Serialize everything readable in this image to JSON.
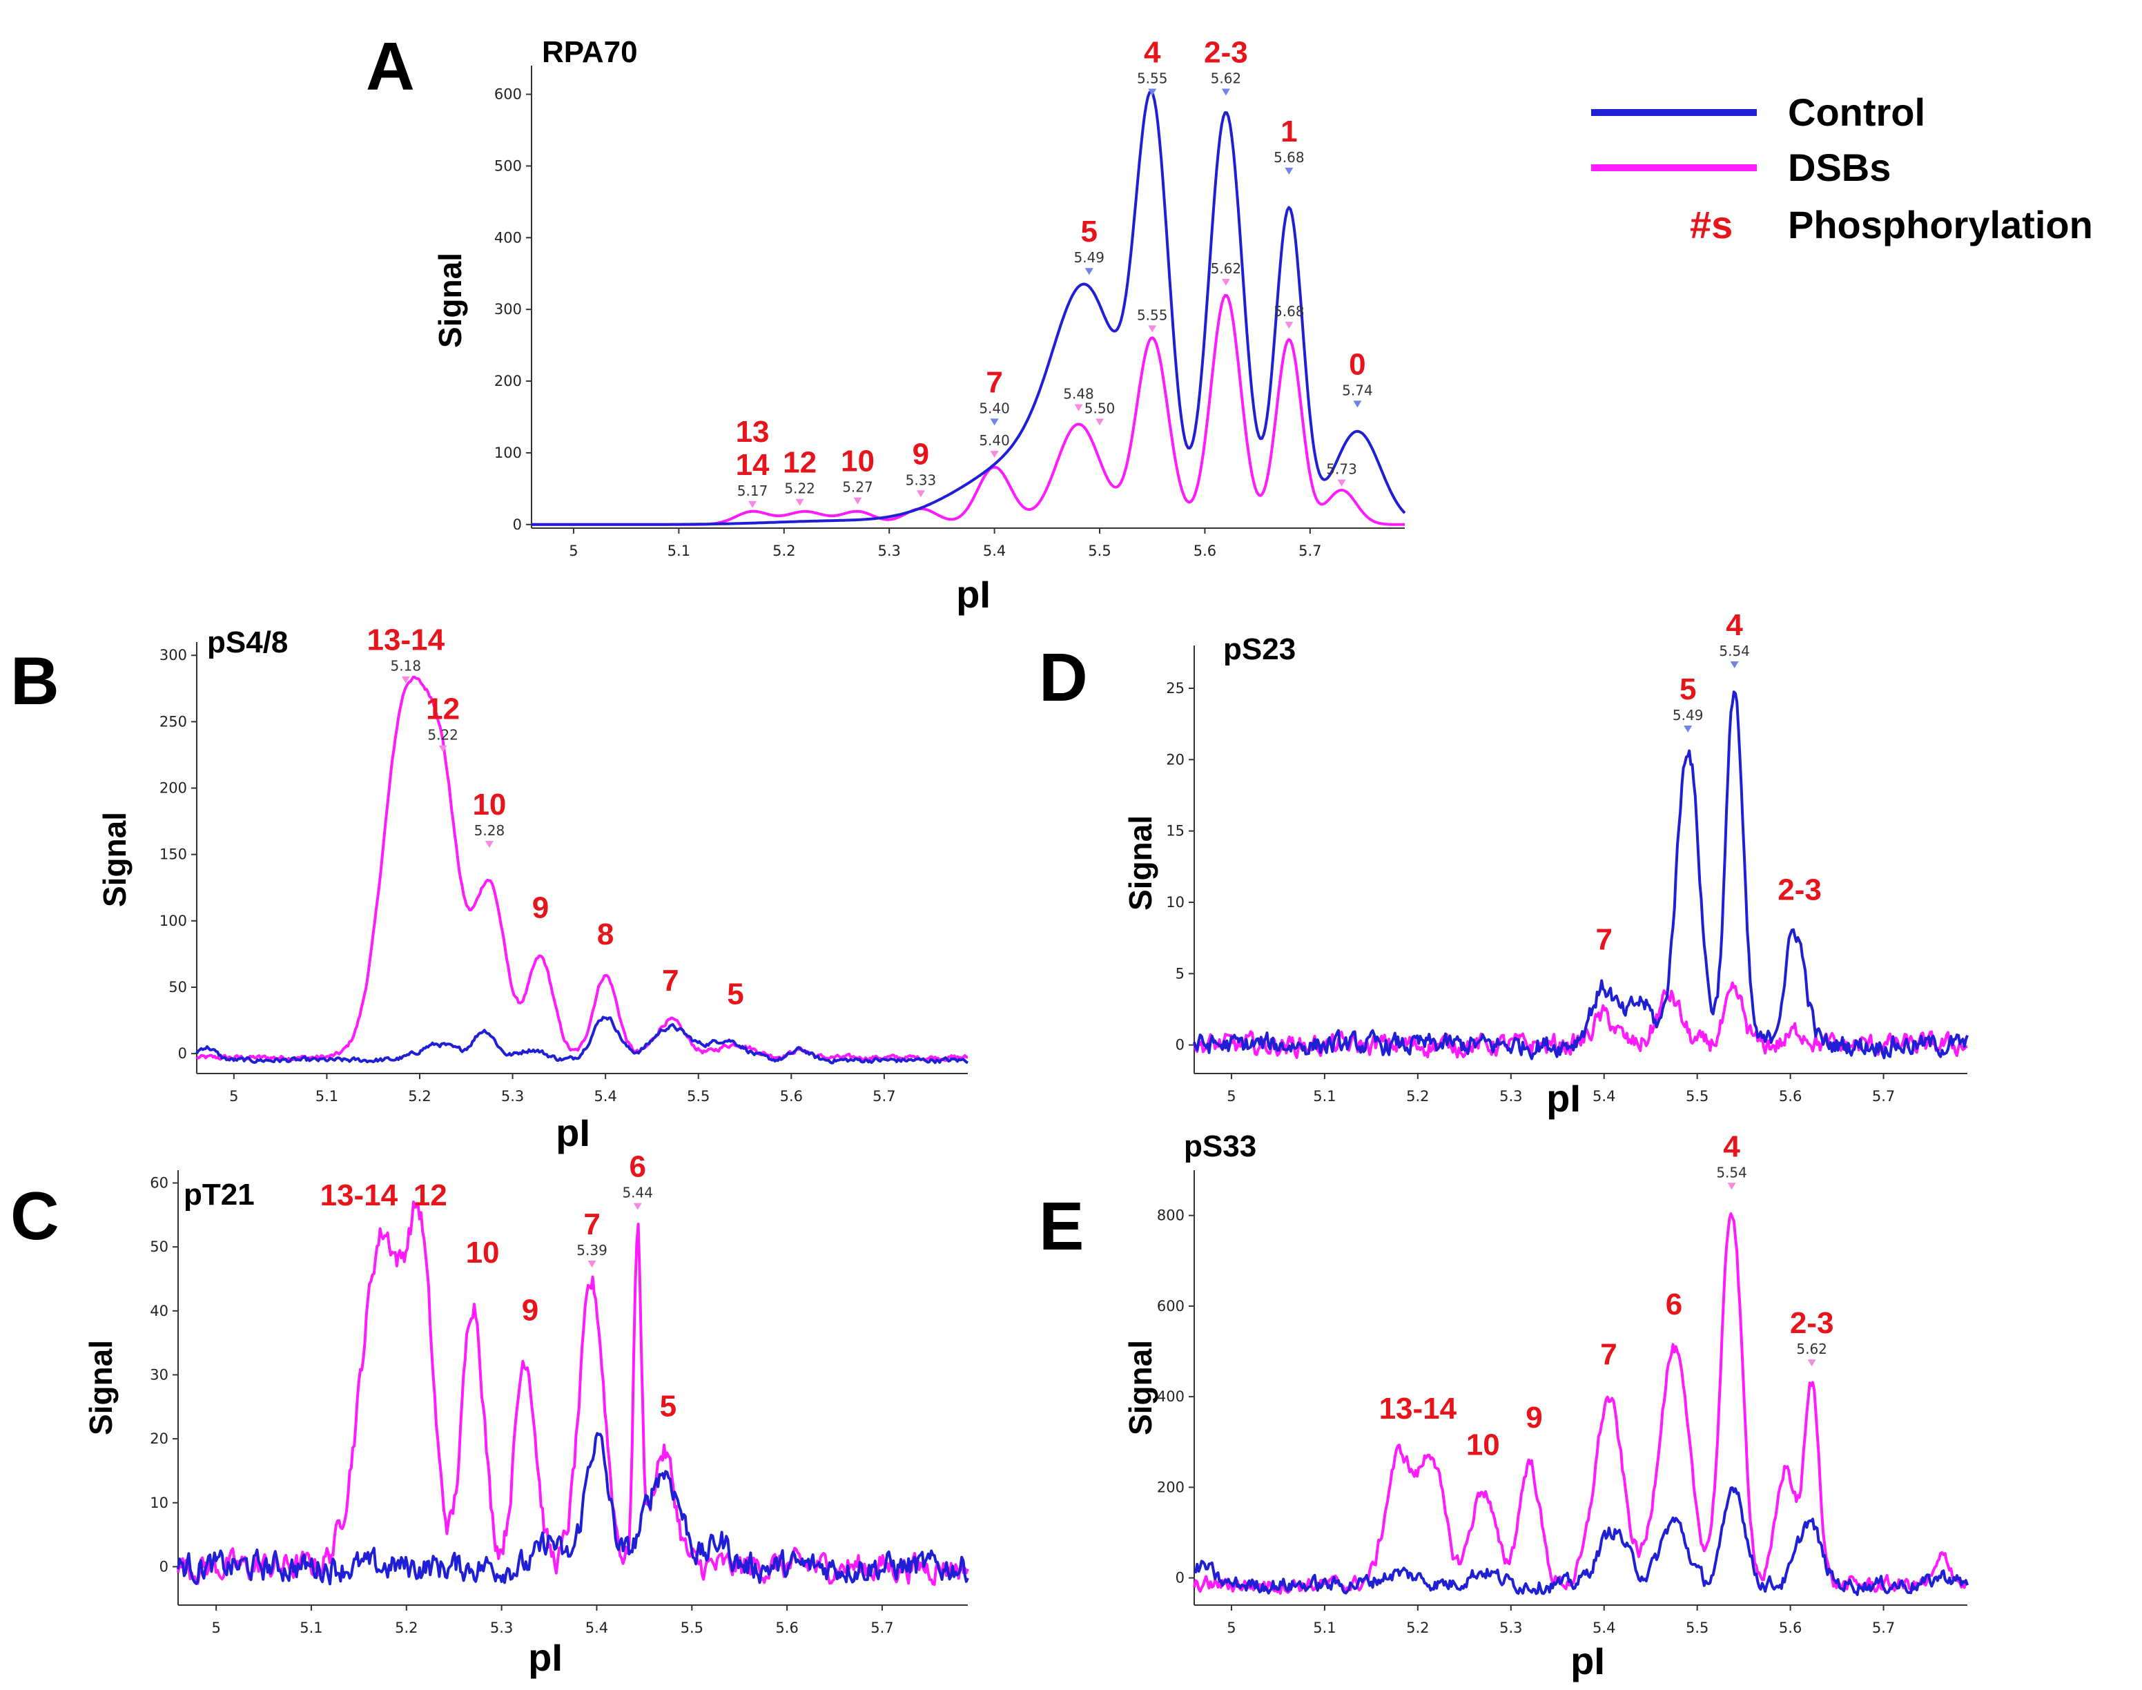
{
  "colors": {
    "control": "#1f1fd6",
    "dsbs": "#ff1aff",
    "annotation": "#e8141b",
    "marker_control": "#6f84e8",
    "marker_dsbs": "#f58ae0"
  },
  "legend": {
    "control_label": "Control",
    "dsbs_label": "DSBs",
    "phospho_symbol": "#s",
    "phospho_label": "Phosphorylation"
  },
  "chart_data": [
    {
      "id": "A",
      "type": "line",
      "title": "RPA70",
      "xlabel": "pI",
      "ylabel": "Signal",
      "xlim": [
        4.96,
        5.79
      ],
      "ylim": [
        -5,
        640
      ],
      "xticks": [
        5,
        5.1,
        5.2,
        5.3,
        5.4,
        5.5,
        5.6,
        5.7
      ],
      "yticks": [
        0,
        100,
        200,
        300,
        400,
        500,
        600
      ],
      "noise": 0,
      "series": [
        {
          "name": "Control",
          "baseline": 0,
          "peaks": [
            [
              5.25,
              5,
              0.06
            ],
            [
              5.4,
              55,
              0.05
            ],
            [
              5.46,
              80,
              0.04
            ],
            [
              5.49,
              260,
              0.03
            ],
            [
              5.55,
              560,
              0.016
            ],
            [
              5.62,
              575,
              0.016
            ],
            [
              5.68,
              440,
              0.013
            ],
            [
              5.745,
              130,
              0.022
            ]
          ]
        },
        {
          "name": "DSBs",
          "baseline": 0,
          "peaks": [
            [
              5.17,
              18,
              0.016
            ],
            [
              5.22,
              18,
              0.018
            ],
            [
              5.27,
              18,
              0.016
            ],
            [
              5.33,
              22,
              0.016
            ],
            [
              5.4,
              80,
              0.016
            ],
            [
              5.48,
              140,
              0.021
            ],
            [
              5.55,
              260,
              0.015
            ],
            [
              5.62,
              320,
              0.014
            ],
            [
              5.68,
              258,
              0.012
            ],
            [
              5.73,
              48,
              0.014
            ]
          ]
        }
      ],
      "phospho_labels": [
        {
          "x": 5.55,
          "y": 600,
          "label": "4"
        },
        {
          "x": 5.62,
          "y": 600,
          "label": "2-3"
        },
        {
          "x": 5.68,
          "y": 490,
          "label": "1"
        },
        {
          "x": 5.49,
          "y": 350,
          "label": "5"
        },
        {
          "x": 5.745,
          "y": 165,
          "label": "0"
        },
        {
          "x": 5.4,
          "y": 140,
          "label": "7"
        },
        {
          "x": 5.33,
          "y": 40,
          "label": "9"
        },
        {
          "x": 5.27,
          "y": 30,
          "label": "10"
        },
        {
          "x": 5.215,
          "y": 28,
          "label": "12"
        },
        {
          "x": 5.17,
          "y": 25,
          "label": "14"
        },
        {
          "x": 5.17,
          "y": 25,
          "label": "13"
        }
      ],
      "peak_markers": [
        {
          "x": 5.55,
          "y": 600,
          "value": "5.55",
          "series": "Control"
        },
        {
          "x": 5.62,
          "y": 600,
          "value": "5.62",
          "series": "Control"
        },
        {
          "x": 5.68,
          "y": 490,
          "value": "5.68",
          "series": "Control"
        },
        {
          "x": 5.49,
          "y": 350,
          "value": "5.49",
          "series": "Control"
        },
        {
          "x": 5.745,
          "y": 165,
          "value": "5.74",
          "series": "Control"
        },
        {
          "x": 5.4,
          "y": 140,
          "value": "5.40",
          "series": "Control"
        },
        {
          "x": 5.62,
          "y": 335,
          "value": "5.62",
          "series": "DSBs"
        },
        {
          "x": 5.55,
          "y": 270,
          "value": "5.55",
          "series": "DSBs"
        },
        {
          "x": 5.68,
          "y": 275,
          "value": "5.68",
          "series": "DSBs"
        },
        {
          "x": 5.48,
          "y": 160,
          "value": "5.48",
          "series": "DSBs"
        },
        {
          "x": 5.5,
          "y": 140,
          "value": "5.50",
          "series": "DSBs"
        },
        {
          "x": 5.4,
          "y": 95,
          "value": "5.40",
          "series": "DSBs"
        },
        {
          "x": 5.73,
          "y": 55,
          "value": "5.73",
          "series": "DSBs"
        },
        {
          "x": 5.33,
          "y": 40,
          "value": "5.33",
          "series": "DSBs"
        },
        {
          "x": 5.27,
          "y": 30,
          "value": "5.27",
          "series": "DSBs"
        },
        {
          "x": 5.215,
          "y": 28,
          "value": "5.22",
          "series": "DSBs"
        },
        {
          "x": 5.17,
          "y": 25,
          "value": "5.17",
          "series": "DSBs"
        }
      ]
    },
    {
      "id": "B",
      "type": "line",
      "title": "pS4/8",
      "xlabel": "pI",
      "ylabel": "Signal",
      "xlim": [
        4.96,
        5.79
      ],
      "ylim": [
        -15,
        310
      ],
      "xticks": [
        5,
        5.1,
        5.2,
        5.3,
        5.4,
        5.5,
        5.6,
        5.7
      ],
      "yticks": [
        0,
        50,
        100,
        150,
        200,
        250,
        300
      ],
      "noise": 1.5,
      "series": [
        {
          "name": "Control",
          "baseline": -5,
          "peaks": [
            [
              4.97,
              10,
              0.01
            ],
            [
              5.22,
              12,
              0.02
            ],
            [
              5.27,
              22,
              0.012
            ],
            [
              5.32,
              8,
              0.015
            ],
            [
              5.4,
              33,
              0.014
            ],
            [
              5.47,
              25,
              0.02
            ],
            [
              5.53,
              15,
              0.02
            ],
            [
              5.61,
              8,
              0.01
            ]
          ]
        },
        {
          "name": "DSBs",
          "baseline": -3,
          "peaks": [
            [
              5.185,
              265,
              0.024
            ],
            [
              5.225,
              170,
              0.018
            ],
            [
              5.275,
              130,
              0.017
            ],
            [
              5.33,
              75,
              0.014
            ],
            [
              5.4,
              62,
              0.013
            ],
            [
              5.47,
              28,
              0.016
            ],
            [
              5.54,
              10,
              0.02
            ],
            [
              5.61,
              6,
              0.01
            ]
          ]
        }
      ],
      "phospho_labels": [
        {
          "x": 5.185,
          "y": 280,
          "label": "13-14"
        },
        {
          "x": 5.225,
          "y": 228,
          "label": "12"
        },
        {
          "x": 5.275,
          "y": 156,
          "label": "10"
        },
        {
          "x": 5.33,
          "y": 95,
          "label": "9"
        },
        {
          "x": 5.4,
          "y": 75,
          "label": "8"
        },
        {
          "x": 5.47,
          "y": 40,
          "label": "7"
        },
        {
          "x": 5.54,
          "y": 30,
          "label": "5"
        }
      ],
      "peak_markers": [
        {
          "x": 5.185,
          "y": 280,
          "value": "5.18",
          "series": "DSBs"
        },
        {
          "x": 5.225,
          "y": 228,
          "value": "5.22",
          "series": "DSBs"
        },
        {
          "x": 5.275,
          "y": 156,
          "value": "5.28",
          "series": "DSBs"
        }
      ]
    },
    {
      "id": "C",
      "type": "line",
      "title": "pT21",
      "xlabel": "pI",
      "ylabel": "Signal",
      "xlim": [
        4.96,
        5.79
      ],
      "ylim": [
        -6,
        62
      ],
      "xticks": [
        5,
        5.1,
        5.2,
        5.3,
        5.4,
        5.5,
        5.6,
        5.7
      ],
      "yticks": [
        0,
        10,
        20,
        30,
        40,
        50,
        60
      ],
      "noise": 1.8,
      "series": [
        {
          "name": "Control",
          "baseline": 0,
          "peaks": [
            [
              5.35,
              4,
              0.01
            ],
            [
              5.4,
              20,
              0.012
            ],
            [
              5.47,
              15,
              0.018
            ],
            [
              5.53,
              4,
              0.01
            ]
          ]
        },
        {
          "name": "DSBs",
          "baseline": 0,
          "peaks": [
            [
              5.175,
              52,
              0.022
            ],
            [
              5.215,
              45,
              0.013
            ],
            [
              5.27,
              42,
              0.011
            ],
            [
              5.325,
              33,
              0.011
            ],
            [
              5.395,
              44,
              0.013
            ],
            [
              5.443,
              52,
              0.004
            ],
            [
              5.47,
              18,
              0.012
            ]
          ]
        }
      ],
      "phospho_labels": [
        {
          "x": 5.15,
          "y": 55,
          "label": "13-14"
        },
        {
          "x": 5.225,
          "y": 55,
          "label": "12"
        },
        {
          "x": 5.28,
          "y": 46,
          "label": "10"
        },
        {
          "x": 5.33,
          "y": 37,
          "label": "9"
        },
        {
          "x": 5.395,
          "y": 47,
          "label": "7"
        },
        {
          "x": 5.443,
          "y": 56,
          "label": "6"
        },
        {
          "x": 5.475,
          "y": 22,
          "label": "5"
        }
      ],
      "peak_markers": [
        {
          "x": 5.395,
          "y": 47,
          "value": "5.39",
          "series": "DSBs"
        },
        {
          "x": 5.443,
          "y": 56,
          "value": "5.44",
          "series": "DSBs"
        }
      ]
    },
    {
      "id": "D",
      "type": "line",
      "title": "pS23",
      "xlabel": "pI",
      "ylabel": "Signal",
      "xlim": [
        4.96,
        5.79
      ],
      "ylim": [
        -2,
        28
      ],
      "xticks": [
        5,
        5.1,
        5.2,
        5.3,
        5.4,
        5.5,
        5.6,
        5.7
      ],
      "yticks": [
        0,
        5,
        10,
        15,
        20,
        25
      ],
      "noise": 0.6,
      "series": [
        {
          "name": "Control",
          "baseline": 0,
          "peaks": [
            [
              5.4,
              4,
              0.014
            ],
            [
              5.44,
              3,
              0.012
            ],
            [
              5.49,
              21,
              0.012
            ],
            [
              5.54,
              25,
              0.009
            ],
            [
              5.605,
              8,
              0.011
            ]
          ]
        },
        {
          "name": "DSBs",
          "baseline": 0,
          "peaks": [
            [
              5.4,
              2,
              0.012
            ],
            [
              5.47,
              3.5,
              0.012
            ],
            [
              5.54,
              3.5,
              0.01
            ],
            [
              5.61,
              1,
              0.01
            ]
          ]
        }
      ],
      "phospho_labels": [
        {
          "x": 5.4,
          "y": 6,
          "label": "7"
        },
        {
          "x": 5.49,
          "y": 22,
          "label": "5"
        },
        {
          "x": 5.54,
          "y": 26.5,
          "label": "4"
        },
        {
          "x": 5.61,
          "y": 9.5,
          "label": "2-3"
        }
      ],
      "peak_markers": [
        {
          "x": 5.49,
          "y": 22,
          "value": "5.49",
          "series": "Control"
        },
        {
          "x": 5.54,
          "y": 26.5,
          "value": "5.54",
          "series": "Control"
        }
      ]
    },
    {
      "id": "E",
      "type": "line",
      "title": "pS33",
      "xlabel": "pI",
      "ylabel": "Signal",
      "xlim": [
        4.96,
        5.79
      ],
      "ylim": [
        -60,
        900
      ],
      "xticks": [
        5,
        5.1,
        5.2,
        5.3,
        5.4,
        5.5,
        5.6,
        5.7
      ],
      "yticks": [
        0,
        200,
        400,
        600,
        800
      ],
      "noise": 14,
      "series": [
        {
          "name": "Control",
          "baseline": -15,
          "peaks": [
            [
              4.97,
              40,
              0.01
            ],
            [
              5.18,
              25,
              0.02
            ],
            [
              5.27,
              30,
              0.015
            ],
            [
              5.41,
              120,
              0.016
            ],
            [
              5.475,
              140,
              0.014
            ],
            [
              5.54,
              220,
              0.011
            ],
            [
              5.62,
              140,
              0.012
            ],
            [
              5.765,
              20,
              0.01
            ]
          ]
        },
        {
          "name": "DSBs",
          "baseline": -15,
          "peaks": [
            [
              5.18,
              285,
              0.014
            ],
            [
              5.215,
              280,
              0.013
            ],
            [
              5.27,
              210,
              0.013
            ],
            [
              5.32,
              270,
              0.011
            ],
            [
              5.405,
              410,
              0.015
            ],
            [
              5.475,
              520,
              0.016
            ],
            [
              5.537,
              830,
              0.011
            ],
            [
              5.595,
              260,
              0.01
            ],
            [
              5.623,
              440,
              0.008
            ],
            [
              5.765,
              60,
              0.008
            ]
          ]
        }
      ],
      "phospho_labels": [
        {
          "x": 5.2,
          "y": 330,
          "label": "13-14"
        },
        {
          "x": 5.27,
          "y": 250,
          "label": "10"
        },
        {
          "x": 5.325,
          "y": 310,
          "label": "9"
        },
        {
          "x": 5.405,
          "y": 450,
          "label": "7"
        },
        {
          "x": 5.475,
          "y": 560,
          "label": "6"
        },
        {
          "x": 5.537,
          "y": 860,
          "label": "4"
        },
        {
          "x": 5.623,
          "y": 470,
          "label": "2-3"
        }
      ],
      "peak_markers": [
        {
          "x": 5.537,
          "y": 860,
          "value": "5.54",
          "series": "DSBs"
        },
        {
          "x": 5.623,
          "y": 470,
          "value": "5.62",
          "series": "DSBs"
        }
      ]
    }
  ]
}
